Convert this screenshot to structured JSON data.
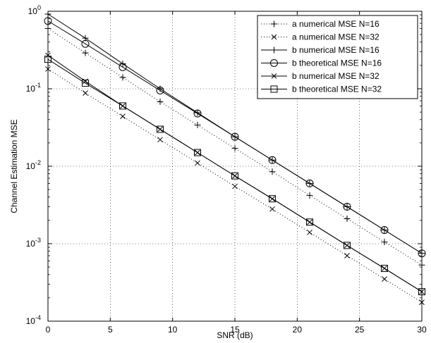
{
  "chart_data": {
    "type": "line",
    "xlabel": "SNR (dB)",
    "ylabel": "Channel Estimation MSE",
    "xlim": [
      0,
      30
    ],
    "ylim": [
      0.0001,
      1
    ],
    "yscale": "log",
    "x_ticks": [
      0,
      5,
      10,
      15,
      20,
      25,
      30
    ],
    "y_ticks": [
      {
        "value": 0.0001,
        "base": "10",
        "exp": "-4"
      },
      {
        "value": 0.001,
        "base": "10",
        "exp": "-3"
      },
      {
        "value": 0.01,
        "base": "10",
        "exp": "-2"
      },
      {
        "value": 0.1,
        "base": "10",
        "exp": "-1"
      },
      {
        "value": 1,
        "base": "10",
        "exp": "0"
      }
    ],
    "grid": true,
    "legend_position": "top-right",
    "x": [
      0,
      3,
      6,
      9,
      12,
      15,
      18,
      21,
      24,
      27,
      30
    ],
    "series": [
      {
        "name": "a numerical MSE N=16",
        "line": "dotted",
        "marker": "+",
        "x": [
          0,
          3,
          6,
          9,
          12,
          15,
          18,
          21,
          24,
          27,
          30
        ],
        "values": [
          0.6,
          0.29,
          0.14,
          0.068,
          0.034,
          0.017,
          0.0085,
          0.0042,
          0.0021,
          0.00105,
          0.00053
        ]
      },
      {
        "name": "a numerical MSE N=32",
        "line": "dotted",
        "marker": "x",
        "x": [
          0,
          3,
          6,
          9,
          12,
          15,
          18,
          21,
          24,
          27,
          30
        ],
        "values": [
          0.18,
          0.088,
          0.044,
          0.022,
          0.011,
          0.0055,
          0.0028,
          0.0014,
          0.0007,
          0.00035,
          0.000175
        ]
      },
      {
        "name": "b numerical MSE N=16",
        "line": "solid",
        "marker": "+",
        "x": [
          0,
          3,
          6,
          9,
          12,
          15,
          18,
          21,
          24,
          27,
          30
        ],
        "values": [
          0.92,
          0.45,
          0.21,
          0.1,
          0.049,
          0.024,
          0.012,
          0.006,
          0.003,
          0.0015,
          0.00075
        ]
      },
      {
        "name": "b theoretical MSE N=16",
        "line": "solid",
        "marker": "o",
        "x": [
          0,
          3,
          6,
          9,
          12,
          15,
          18,
          21,
          24,
          27,
          30
        ],
        "values": [
          0.75,
          0.38,
          0.19,
          0.095,
          0.048,
          0.024,
          0.012,
          0.006,
          0.003,
          0.0015,
          0.00075
        ]
      },
      {
        "name": "b numerical MSE N=32",
        "line": "solid",
        "marker": "x",
        "x": [
          0,
          3,
          6,
          9,
          12,
          15,
          18,
          21,
          24,
          27,
          30
        ],
        "values": [
          0.27,
          0.125,
          0.06,
          0.03,
          0.015,
          0.0075,
          0.0038,
          0.0019,
          0.00095,
          0.00048,
          0.00024
        ]
      },
      {
        "name": "b theoretical MSE N=32",
        "line": "solid",
        "marker": "square",
        "x": [
          0,
          3,
          6,
          9,
          12,
          15,
          18,
          21,
          24,
          27,
          30
        ],
        "values": [
          0.24,
          0.118,
          0.06,
          0.03,
          0.015,
          0.0075,
          0.0038,
          0.0019,
          0.00095,
          0.00048,
          0.00024
        ]
      }
    ]
  }
}
